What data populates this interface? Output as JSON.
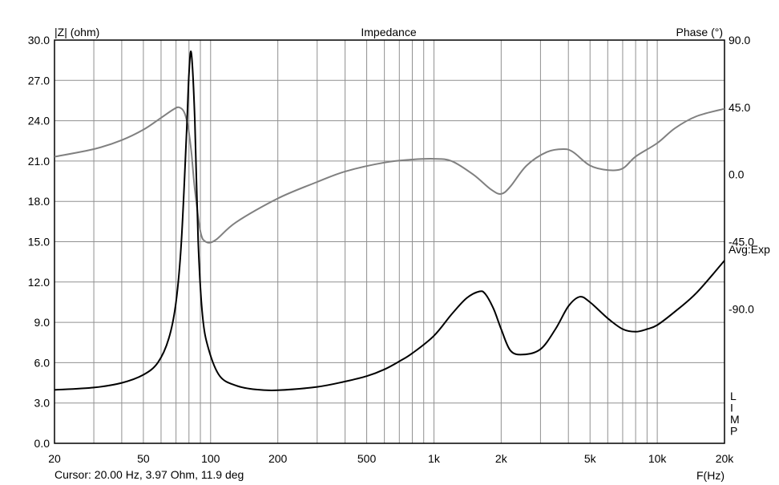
{
  "chart_data": {
    "type": "line",
    "title": "Impedance",
    "ylabel_left": "|Z| (ohm)",
    "ylabel_right": "Phase (°)",
    "xlabel": "F(Hz)",
    "x_scale": "log",
    "xlim": [
      20,
      20000
    ],
    "ylim_left": [
      0,
      30
    ],
    "ylim_right": [
      -180,
      90
    ],
    "x_ticks": [
      20,
      50,
      100,
      200,
      500,
      1000,
      2000,
      5000,
      10000,
      20000
    ],
    "x_tick_labels": [
      "20",
      "50",
      "100",
      "200",
      "500",
      "1k",
      "2k",
      "5k",
      "10k",
      "20k"
    ],
    "y_left_ticks": [
      0,
      3,
      6,
      9,
      12,
      15,
      18,
      21,
      24,
      27,
      30
    ],
    "y_left_tick_labels": [
      "0.0",
      "3.0",
      "6.0",
      "9.0",
      "12.0",
      "15.0",
      "18.0",
      "21.0",
      "24.0",
      "27.0",
      "30.0"
    ],
    "y_right_ticks": [
      90,
      45,
      0,
      -45,
      -90
    ],
    "y_right_tick_labels": [
      "90.0",
      "45.0",
      "0.0",
      "-45.0",
      "-90.0"
    ],
    "right_side_label": "Avg:Exp",
    "limp_label": [
      "L",
      "I",
      "M",
      "P"
    ],
    "grid": true,
    "series": [
      {
        "key": "impedance",
        "color": "#000000",
        "axis": "left",
        "x": [
          20,
          30,
          40,
          50,
          58,
          65,
          70,
          74,
          78,
          80,
          82,
          85,
          88,
          92,
          98,
          110,
          130,
          160,
          200,
          300,
          400,
          500,
          600,
          700,
          800,
          1000,
          1200,
          1400,
          1600,
          1700,
          1850,
          2000,
          2200,
          2500,
          3000,
          3500,
          4000,
          4500,
          5000,
          6000,
          7000,
          8000,
          9000,
          10000,
          12000,
          15000,
          20000
        ],
        "values": [
          3.97,
          4.15,
          4.5,
          5.1,
          6.0,
          7.8,
          10.5,
          15.0,
          23.0,
          27.5,
          29.0,
          24.0,
          15.0,
          9.5,
          7.0,
          5.0,
          4.3,
          4.0,
          3.95,
          4.2,
          4.6,
          5.0,
          5.5,
          6.1,
          6.7,
          8.0,
          9.6,
          10.8,
          11.3,
          11.1,
          10.0,
          8.5,
          6.9,
          6.6,
          7.0,
          8.5,
          10.2,
          10.9,
          10.5,
          9.3,
          8.5,
          8.3,
          8.5,
          8.8,
          9.8,
          11.2,
          13.6
        ]
      },
      {
        "key": "phase",
        "color": "#808080",
        "axis": "right",
        "x": [
          20,
          30,
          40,
          50,
          60,
          68,
          72,
          76,
          79,
          82,
          85,
          90,
          95,
          105,
          130,
          200,
          300,
          400,
          600,
          800,
          1000,
          1200,
          1500,
          1800,
          2000,
          2200,
          2600,
          3200,
          3800,
          4200,
          5000,
          6000,
          7000,
          8000,
          10000,
          12000,
          15000,
          20000
        ],
        "values": [
          11.9,
          17.0,
          23.0,
          30.0,
          38.0,
          43.5,
          45.0,
          42.0,
          33.0,
          15.0,
          -10.0,
          -38.0,
          -45.0,
          -44.0,
          -32.0,
          -16.0,
          -5.0,
          2.0,
          8.0,
          10.0,
          10.5,
          9.0,
          0.0,
          -10.0,
          -13.0,
          -8.0,
          6.0,
          15.0,
          17.0,
          15.0,
          6.0,
          3.0,
          4.0,
          12.0,
          21.0,
          31.0,
          39.0,
          44.0
        ]
      }
    ]
  },
  "status": {
    "cursor_text": "Cursor: 20.00 Hz, 3.97 Ohm, 11.9 deg"
  }
}
